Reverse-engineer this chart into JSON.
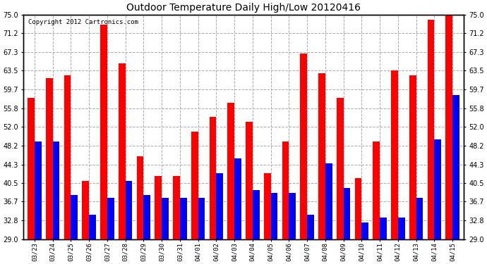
{
  "title": "Outdoor Temperature Daily High/Low 20120416",
  "copyright": "Copyright 2012 Cartronics.com",
  "categories": [
    "03/23",
    "03/24",
    "03/25",
    "03/26",
    "03/27",
    "03/28",
    "03/29",
    "03/30",
    "03/31",
    "04/01",
    "04/02",
    "04/03",
    "04/04",
    "04/05",
    "04/06",
    "04/07",
    "04/08",
    "04/09",
    "04/10",
    "04/11",
    "04/12",
    "04/13",
    "04/14",
    "04/15"
  ],
  "highs": [
    58.0,
    62.0,
    62.5,
    41.0,
    73.0,
    65.0,
    46.0,
    42.0,
    42.0,
    51.0,
    54.0,
    57.0,
    53.0,
    42.5,
    49.0,
    67.0,
    63.0,
    58.0,
    41.5,
    49.0,
    63.5,
    62.5,
    74.0,
    75.0
  ],
  "lows": [
    49.0,
    49.0,
    38.0,
    34.0,
    37.5,
    41.0,
    38.0,
    37.5,
    37.5,
    37.5,
    42.5,
    45.5,
    39.0,
    38.5,
    38.5,
    34.0,
    44.5,
    39.5,
    32.5,
    33.5,
    33.5,
    37.5,
    49.5,
    58.5
  ],
  "high_color": "#ff0000",
  "low_color": "#0000ff",
  "background_color": "#ffffff",
  "plot_bg_color": "#ffffff",
  "grid_color": "#aaaaaa",
  "yticks": [
    29.0,
    32.8,
    36.7,
    40.5,
    44.3,
    48.2,
    52.0,
    55.8,
    59.7,
    63.5,
    67.3,
    71.2,
    75.0
  ],
  "ylim": [
    29.0,
    75.0
  ],
  "bar_width": 0.38
}
